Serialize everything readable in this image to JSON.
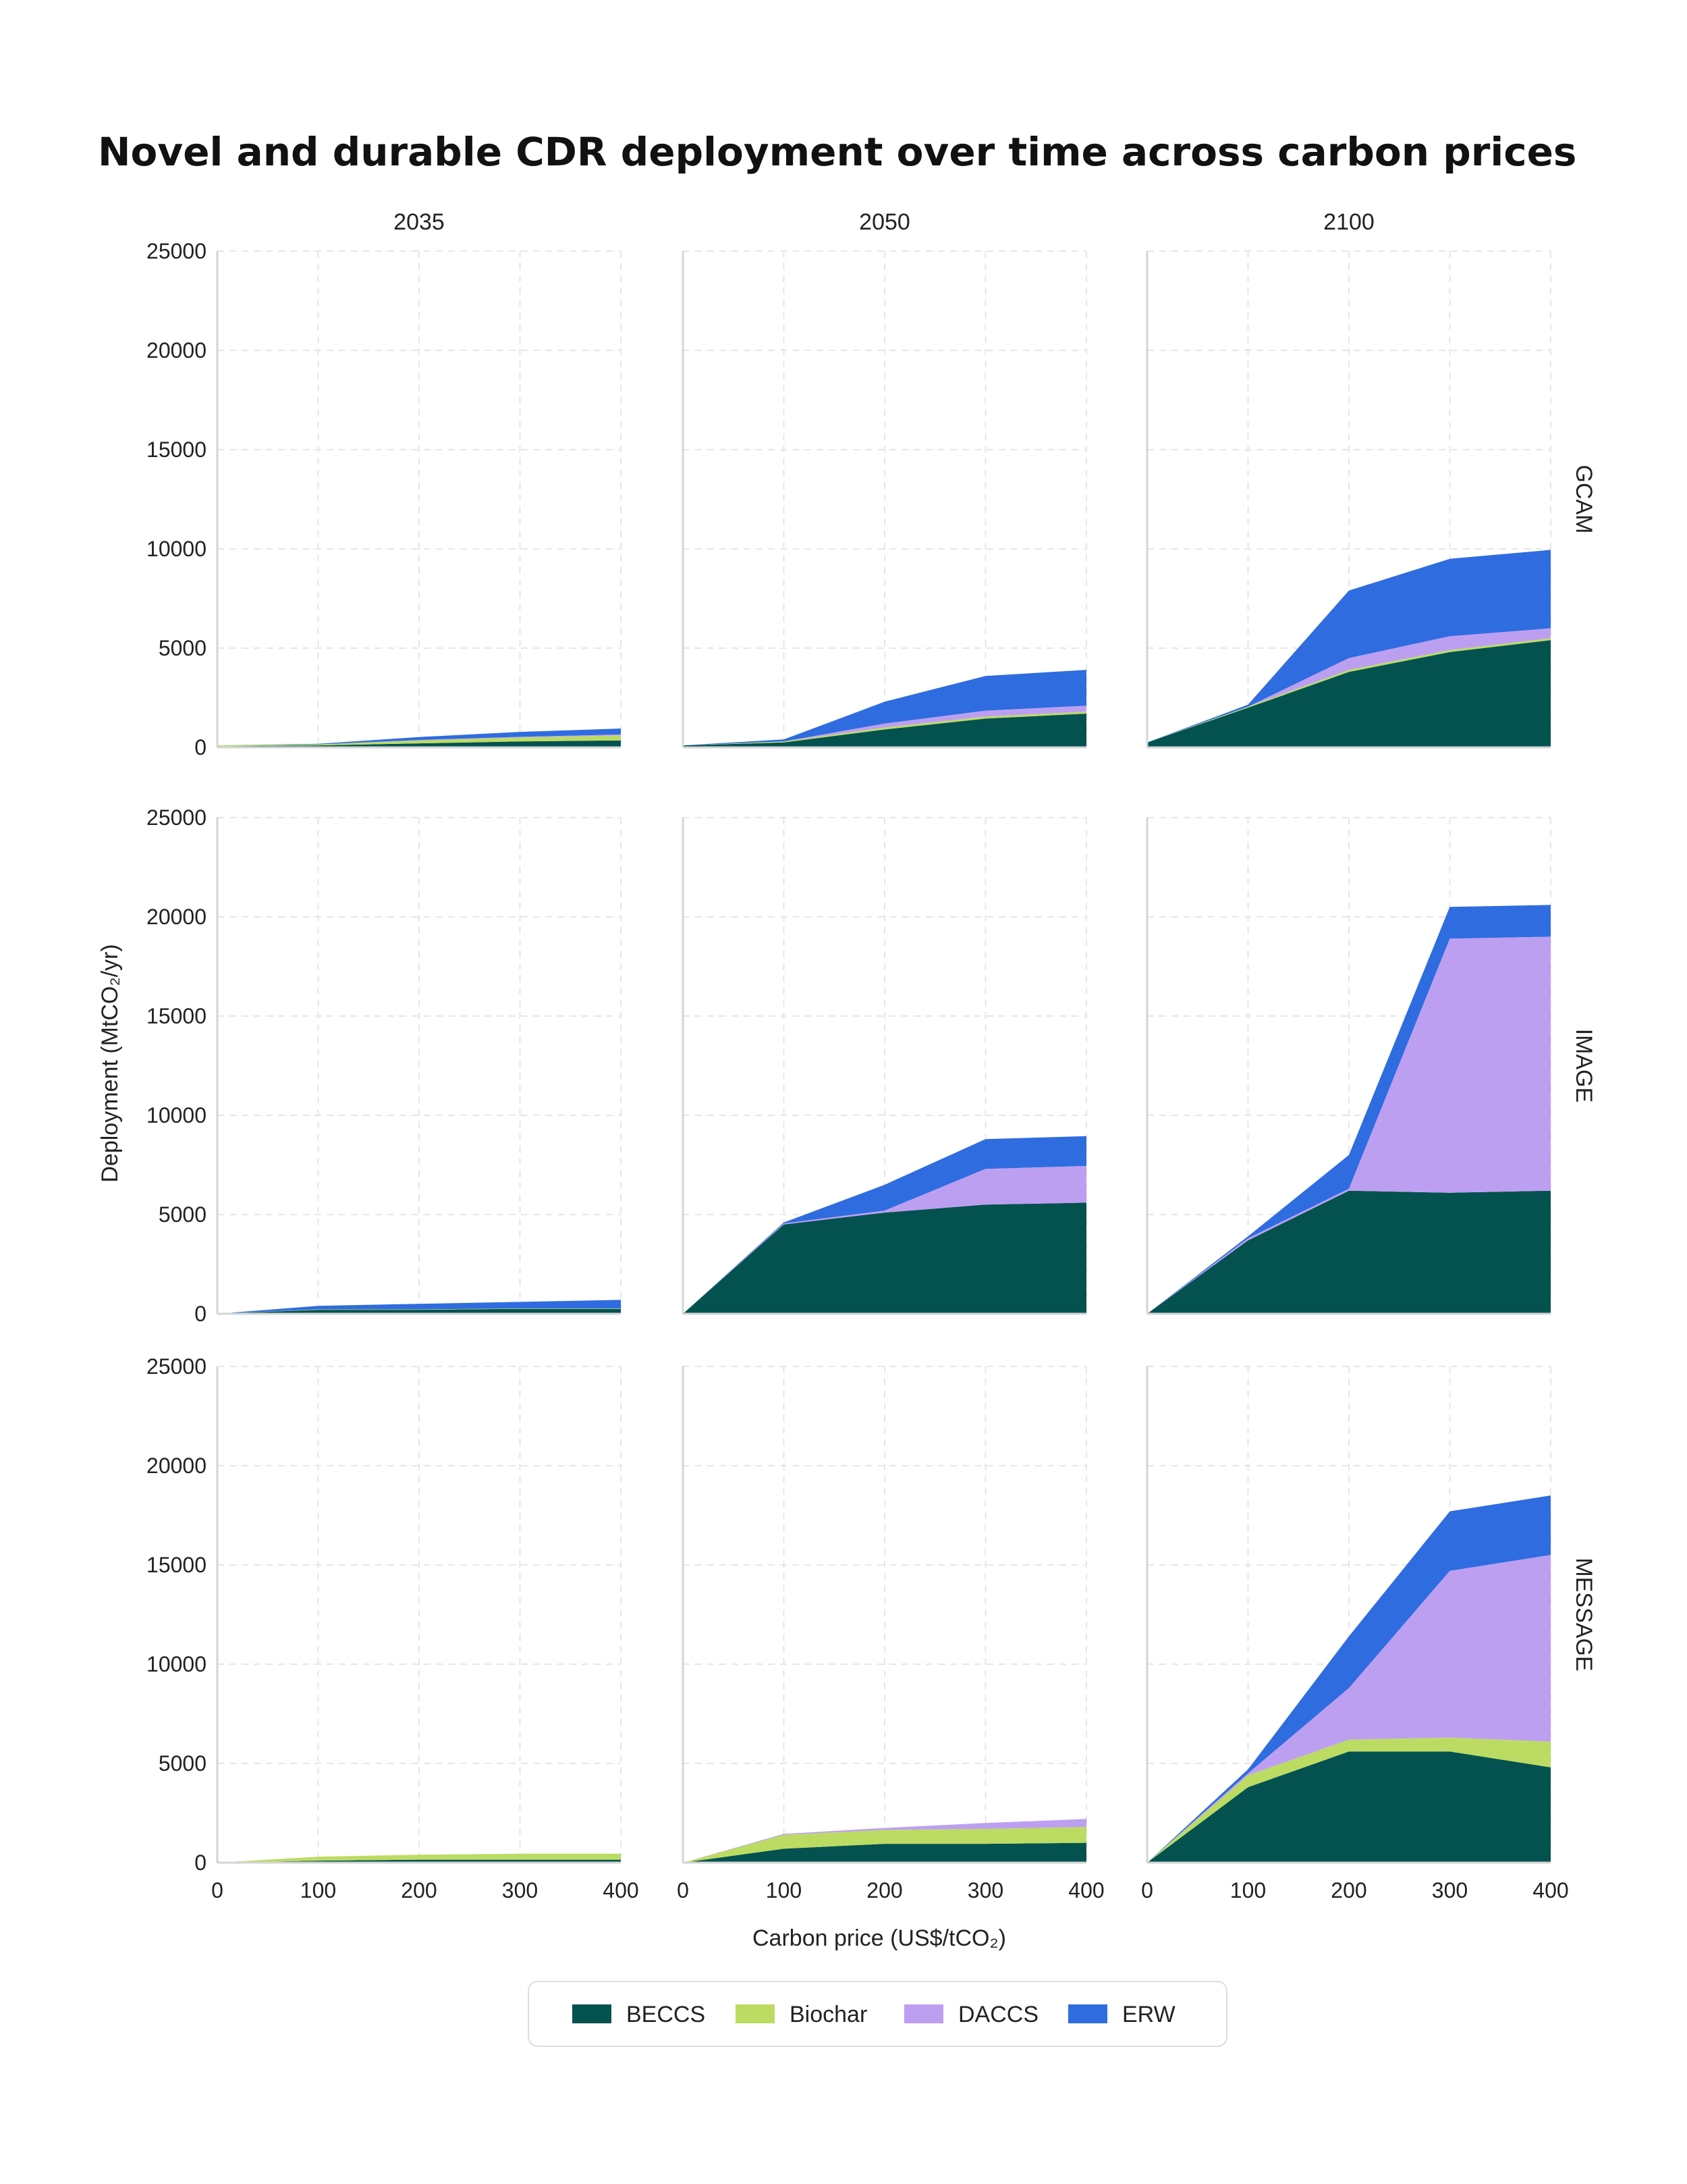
{
  "chart_data": {
    "type": "area",
    "title": "Novel and durable CDR deployment over time across carbon prices",
    "xlabel": "Carbon price (US$/tCO₂)",
    "ylabel": "Deployment (MtCO₂/yr)",
    "x": [
      0,
      100,
      200,
      300,
      400
    ],
    "xlim": [
      0,
      400
    ],
    "ylim": [
      0,
      25000
    ],
    "x_ticks": [
      0,
      100,
      200,
      300,
      400
    ],
    "y_ticks": [
      0,
      5000,
      10000,
      15000,
      20000,
      25000
    ],
    "stacked": true,
    "grid": true,
    "legend_position": "bottom",
    "columns": [
      "2035",
      "2050",
      "2100"
    ],
    "rows": [
      "GCAM",
      "IMAGE",
      "MESSAGE"
    ],
    "series_info": [
      {
        "name": "BECCS",
        "color": "#03524f"
      },
      {
        "name": "Biochar",
        "color": "#bcdb62"
      },
      {
        "name": "DACCS",
        "color": "#bd9ff2"
      },
      {
        "name": "ERW",
        "color": "#2f6ce0"
      }
    ],
    "panels": [
      {
        "row": "GCAM",
        "column": "2035",
        "series": [
          {
            "name": "BECCS",
            "values": [
              50,
              100,
              200,
              300,
              350
            ]
          },
          {
            "name": "Biochar",
            "values": [
              50,
              50,
              150,
              200,
              250
            ]
          },
          {
            "name": "DACCS",
            "values": [
              0,
              0,
              20,
              30,
              50
            ]
          },
          {
            "name": "ERW",
            "values": [
              0,
              30,
              150,
              250,
              300
            ]
          }
        ]
      },
      {
        "row": "GCAM",
        "column": "2050",
        "series": [
          {
            "name": "BECCS",
            "values": [
              100,
              250,
              900,
              1450,
              1700
            ]
          },
          {
            "name": "Biochar",
            "values": [
              0,
              50,
              100,
              100,
              100
            ]
          },
          {
            "name": "DACCS",
            "values": [
              0,
              0,
              200,
              300,
              300
            ]
          },
          {
            "name": "ERW",
            "values": [
              0,
              100,
              1100,
              1750,
              1800
            ]
          }
        ]
      },
      {
        "row": "GCAM",
        "column": "2100",
        "series": [
          {
            "name": "BECCS",
            "values": [
              250,
              2000,
              3800,
              4800,
              5400
            ]
          },
          {
            "name": "Biochar",
            "values": [
              0,
              50,
              100,
              100,
              100
            ]
          },
          {
            "name": "DACCS",
            "values": [
              0,
              0,
              600,
              700,
              500
            ]
          },
          {
            "name": "ERW",
            "values": [
              0,
              100,
              3400,
              3900,
              3950
            ]
          }
        ]
      },
      {
        "row": "IMAGE",
        "column": "2035",
        "series": [
          {
            "name": "BECCS",
            "values": [
              0,
              200,
              200,
              250,
              250
            ]
          },
          {
            "name": "Biochar",
            "values": [
              0,
              20,
              20,
              20,
              20
            ]
          },
          {
            "name": "DACCS",
            "values": [
              0,
              0,
              0,
              0,
              0
            ]
          },
          {
            "name": "ERW",
            "values": [
              0,
              180,
              280,
              330,
              430
            ]
          }
        ]
      },
      {
        "row": "IMAGE",
        "column": "2050",
        "series": [
          {
            "name": "BECCS",
            "values": [
              0,
              4500,
              5100,
              5500,
              5600
            ]
          },
          {
            "name": "Biochar",
            "values": [
              0,
              0,
              0,
              0,
              0
            ]
          },
          {
            "name": "DACCS",
            "values": [
              0,
              50,
              100,
              1800,
              1850
            ]
          },
          {
            "name": "ERW",
            "values": [
              0,
              50,
              1300,
              1500,
              1500
            ]
          }
        ]
      },
      {
        "row": "IMAGE",
        "column": "2100",
        "series": [
          {
            "name": "BECCS",
            "values": [
              0,
              3700,
              6200,
              6100,
              6200
            ]
          },
          {
            "name": "Biochar",
            "values": [
              0,
              0,
              0,
              0,
              0
            ]
          },
          {
            "name": "DACCS",
            "values": [
              0,
              100,
              100,
              12800,
              12800
            ]
          },
          {
            "name": "ERW",
            "values": [
              0,
              100,
              1700,
              1600,
              1600
            ]
          }
        ]
      },
      {
        "row": "MESSAGE",
        "column": "2035",
        "series": [
          {
            "name": "BECCS",
            "values": [
              0,
              100,
              150,
              150,
              150
            ]
          },
          {
            "name": "Biochar",
            "values": [
              0,
              200,
              250,
              300,
              300
            ]
          },
          {
            "name": "DACCS",
            "values": [
              0,
              0,
              0,
              0,
              0
            ]
          },
          {
            "name": "ERW",
            "values": [
              0,
              0,
              0,
              0,
              0
            ]
          }
        ]
      },
      {
        "row": "MESSAGE",
        "column": "2050",
        "series": [
          {
            "name": "BECCS",
            "values": [
              0,
              700,
              950,
              950,
              1000
            ]
          },
          {
            "name": "Biochar",
            "values": [
              0,
              700,
              700,
              750,
              800
            ]
          },
          {
            "name": "DACCS",
            "values": [
              0,
              50,
              100,
              300,
              400
            ]
          },
          {
            "name": "ERW",
            "values": [
              0,
              0,
              0,
              0,
              0
            ]
          }
        ]
      },
      {
        "row": "MESSAGE",
        "column": "2100",
        "series": [
          {
            "name": "BECCS",
            "values": [
              0,
              3800,
              5600,
              5600,
              4800
            ]
          },
          {
            "name": "Biochar",
            "values": [
              0,
              600,
              600,
              700,
              1300
            ]
          },
          {
            "name": "DACCS",
            "values": [
              0,
              100,
              2600,
              8400,
              9400
            ]
          },
          {
            "name": "ERW",
            "values": [
              0,
              200,
              2600,
              3000,
              3000
            ]
          }
        ]
      }
    ]
  }
}
